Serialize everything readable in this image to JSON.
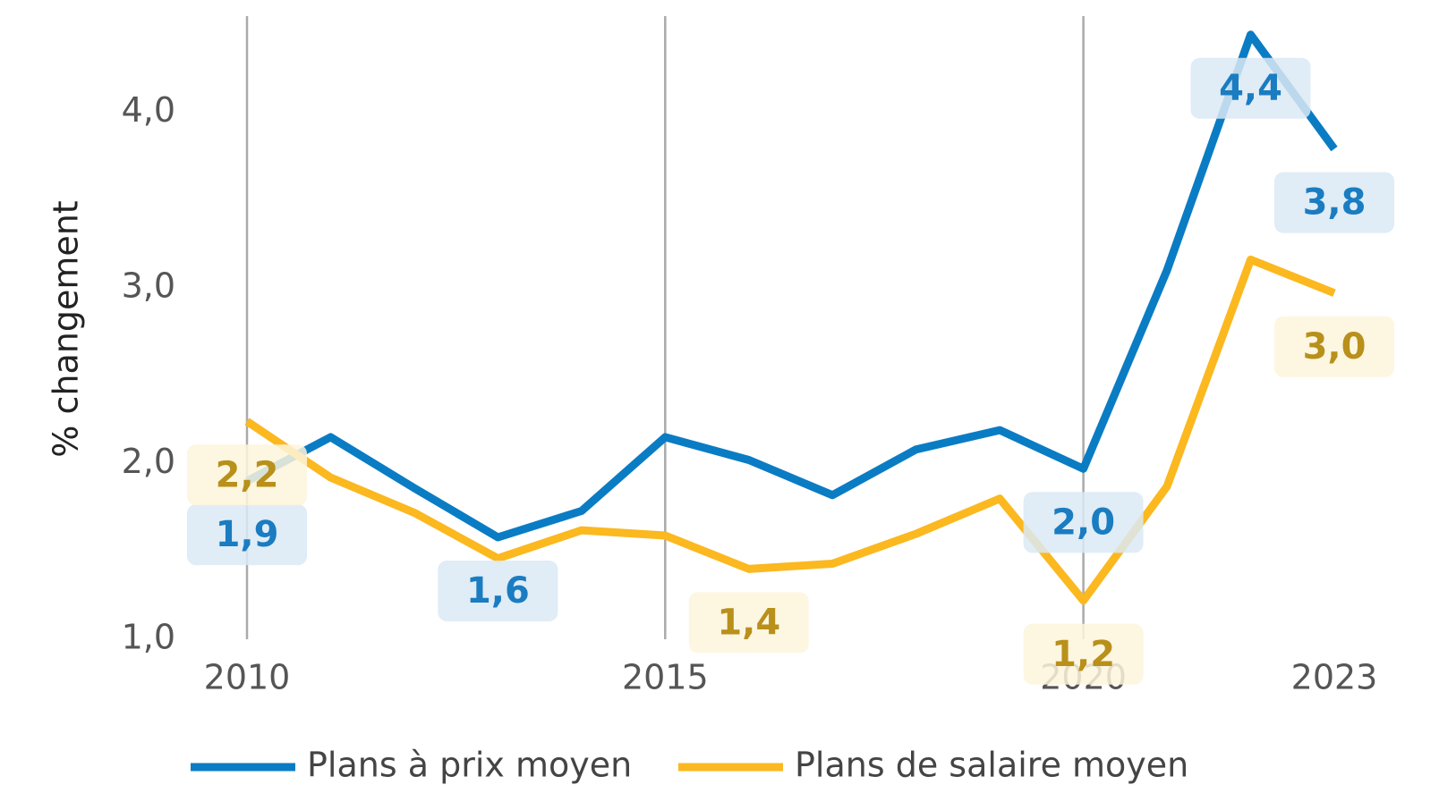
{
  "chart_data": {
    "type": "line",
    "y_label": "% changement",
    "x": [
      2010,
      2011,
      2012,
      2013,
      2014,
      2015,
      2016,
      2017,
      2018,
      2019,
      2020,
      2021,
      2022,
      2023
    ],
    "series": [
      {
        "name": "Plans à prix moyen",
        "color": "#0a7cc4",
        "label_bg": "#dbe9f5",
        "label_color": "#1a7cc1",
        "values": [
          1.9,
          2.15,
          1.86,
          1.58,
          1.73,
          2.15,
          2.02,
          1.82,
          2.08,
          2.19,
          1.97,
          3.1,
          4.44,
          3.79
        ],
        "value_labels": [
          "1,9",
          null,
          null,
          "1,6",
          null,
          null,
          null,
          null,
          null,
          null,
          "2,0",
          null,
          "4,4",
          "3,8"
        ]
      },
      {
        "name": "Plans de salaire moyen",
        "color": "#fbb81f",
        "label_bg": "#fdf5dc",
        "label_color": "#b8901a",
        "values": [
          2.24,
          1.92,
          1.72,
          1.46,
          1.62,
          1.59,
          1.4,
          1.43,
          1.6,
          1.8,
          1.22,
          1.87,
          3.16,
          2.97
        ],
        "value_labels": [
          "2,2",
          null,
          null,
          null,
          null,
          null,
          "1,4",
          null,
          null,
          null,
          "1,2",
          null,
          null,
          "3,0"
        ]
      }
    ],
    "xlim": [
      2010,
      2023
    ],
    "xticks": [
      2010,
      2015,
      2020,
      2023
    ],
    "xgrid": [
      2010,
      2015,
      2020
    ],
    "ylim": [
      1,
      4.5
    ],
    "yticks": [
      {
        "value": 1,
        "label": "1,0"
      },
      {
        "value": 2,
        "label": "2,0"
      },
      {
        "value": 3,
        "label": "3,0"
      },
      {
        "value": 4,
        "label": "4,0"
      }
    ],
    "legend": "bottom"
  }
}
